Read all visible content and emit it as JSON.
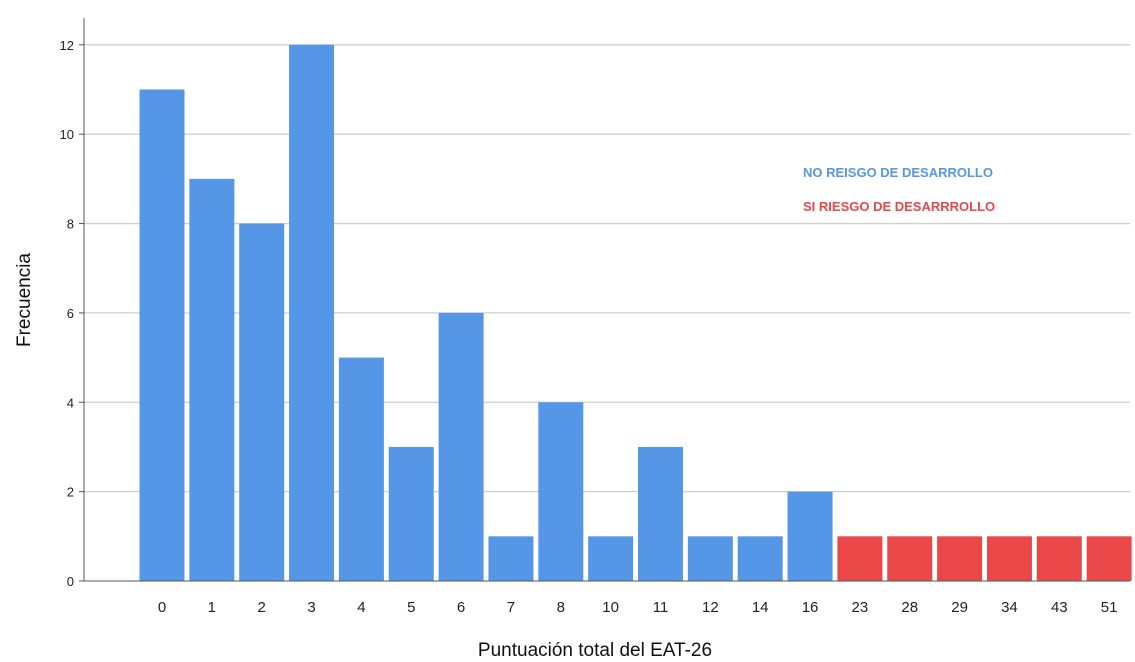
{
  "chart_data": {
    "type": "bar",
    "title": "",
    "xlabel": "Puntuación total del EAT-26",
    "ylabel": "Frecuencia",
    "categories": [
      "0",
      "1",
      "2",
      "3",
      "4",
      "5",
      "6",
      "7",
      "8",
      "10",
      "11",
      "12",
      "14",
      "16",
      "23",
      "28",
      "29",
      "34",
      "43",
      "51"
    ],
    "values": [
      11,
      9,
      8,
      12,
      5,
      3,
      6,
      1,
      4,
      1,
      3,
      1,
      1,
      2,
      1,
      1,
      1,
      1,
      1,
      1
    ],
    "groups": [
      "no",
      "no",
      "no",
      "no",
      "no",
      "no",
      "no",
      "no",
      "no",
      "no",
      "no",
      "no",
      "no",
      "no",
      "si",
      "si",
      "si",
      "si",
      "si",
      "si"
    ],
    "ylim": [
      0,
      12.6
    ],
    "yticks": [
      0,
      2,
      4,
      6,
      8,
      10,
      12
    ],
    "grid": true,
    "legend": {
      "placement": "right",
      "entries": [
        {
          "key": "no",
          "label": "NO REISGO DE DESARROLLO",
          "color": "#5597e6"
        },
        {
          "key": "si",
          "label": "SI RIESGO DE DESARRROLLO",
          "color": "#ea4749"
        }
      ]
    }
  }
}
